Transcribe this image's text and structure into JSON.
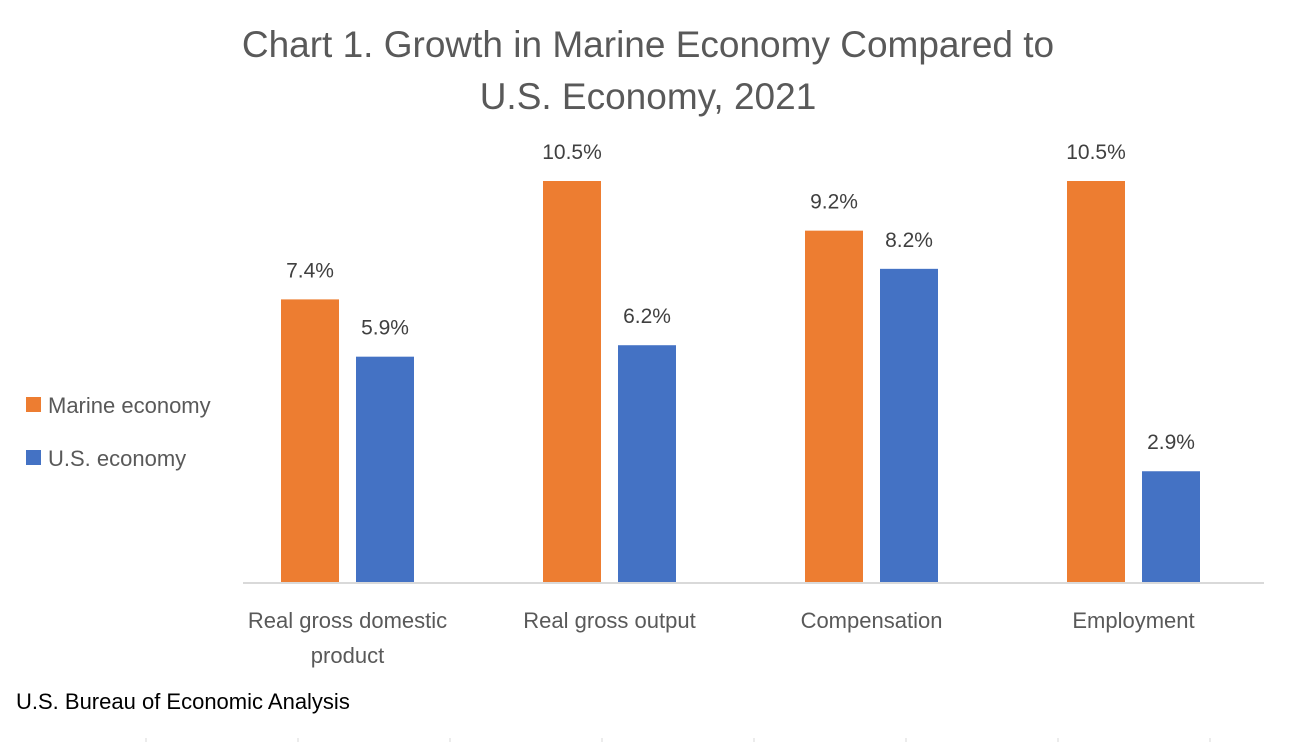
{
  "chart_data": {
    "type": "bar",
    "title_lines": [
      "Chart 1. Growth in Marine Economy Compared to",
      "U.S. Economy, 2021"
    ],
    "title": "Chart 1. Growth in Marine Economy Compared to U.S. Economy, 2021",
    "xlabel": "",
    "ylabel": "",
    "categories": [
      [
        "Real gross domestic",
        "product"
      ],
      [
        "Real gross output"
      ],
      [
        "Compensation"
      ],
      [
        "Employment"
      ]
    ],
    "series": [
      {
        "name": "Marine economy",
        "color": "#ED7D31",
        "values": [
          7.4,
          10.5,
          9.2,
          10.5
        ],
        "labels": [
          "7.4%",
          "10.5%",
          "9.2%",
          "10.5%"
        ]
      },
      {
        "name": "U.S. economy",
        "color": "#4472C4",
        "values": [
          5.9,
          6.2,
          8.2,
          2.9
        ],
        "labels": [
          "5.9%",
          "6.2%",
          "8.2%",
          "2.9%"
        ]
      }
    ],
    "ylim": [
      0,
      10.5
    ],
    "grid": false,
    "legend_position": "left",
    "value_unit": "%"
  },
  "source": "U.S. Bureau of Economic Analysis"
}
